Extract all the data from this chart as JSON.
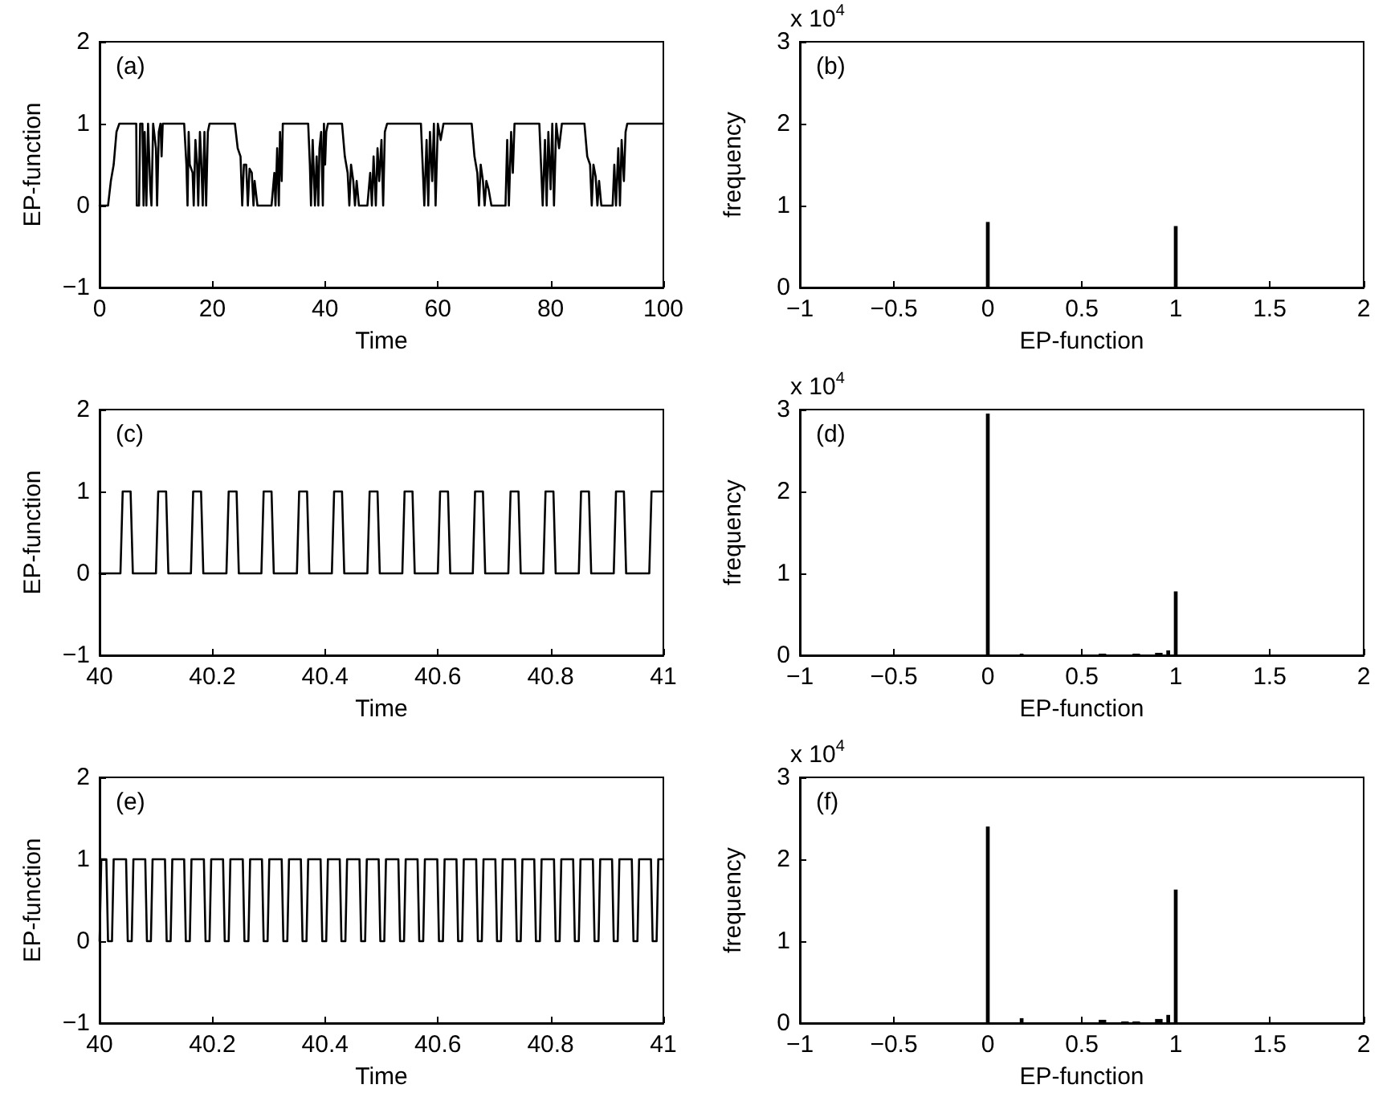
{
  "chart_data": [
    {
      "type": "line",
      "xlabel": "Time",
      "ylabel": "EP-function",
      "annotations": [
        "(a)"
      ],
      "color": "#000000",
      "xlim": [
        0,
        100
      ],
      "xticks": [
        0,
        20,
        40,
        60,
        80,
        100
      ],
      "ylim": [
        -1,
        2
      ],
      "yticks": [
        -1,
        0,
        1,
        2
      ],
      "x": [
        0,
        1.5,
        2,
        2.5,
        3,
        3.5,
        6.5,
        6.6,
        7,
        7.2,
        7.6,
        7.8,
        8,
        8.3,
        8.6,
        9,
        9.2,
        9.5,
        10,
        10.2,
        10.5,
        10.8,
        11,
        11.2,
        15,
        15.4,
        15.6,
        15.8,
        16,
        16.5,
        16.7,
        17,
        17.3,
        17.5,
        17.8,
        18,
        18.3,
        18.6,
        18.9,
        19.2,
        19.5,
        24,
        24.5,
        25,
        25.3,
        25.6,
        26,
        26.3,
        26.6,
        27,
        27.3,
        27.5,
        28,
        30.5,
        31,
        31.2,
        31.5,
        31.8,
        32,
        32.3,
        32.5,
        37,
        37.3,
        37.5,
        37.8,
        38.2,
        38.5,
        38.8,
        39,
        39.3,
        39.6,
        39.8,
        40,
        40.2,
        40.5,
        43,
        43.5,
        44,
        44.3,
        44.6,
        45,
        45.3,
        45.6,
        46,
        47.5,
        48,
        48.3,
        48.6,
        49,
        49.3,
        49.6,
        50,
        50.3,
        50.6,
        51,
        57,
        57.3,
        57.6,
        58,
        58.3,
        58.6,
        59,
        59.3,
        59.6,
        60,
        60.5,
        61,
        66,
        66.5,
        67,
        67.3,
        67.6,
        68,
        68.3,
        68.6,
        69,
        69.5,
        72,
        72.3,
        72.6,
        73,
        73.3,
        73.6,
        78,
        78.3,
        78.6,
        79,
        79.3,
        79.6,
        80,
        80.3,
        80.6,
        81,
        81.5,
        82,
        86,
        86.5,
        87,
        87.3,
        87.6,
        88,
        88.3,
        88.6,
        89,
        91,
        91.3,
        91.6,
        92,
        92.3,
        92.6,
        93,
        93.3,
        93.6,
        100
      ],
      "values": [
        0,
        0,
        0.3,
        0.5,
        0.9,
        1,
        1,
        0,
        0,
        1,
        1,
        0,
        0.9,
        0,
        1,
        0.2,
        0,
        1,
        0.7,
        0,
        0.9,
        1,
        0.6,
        1,
        1,
        0.5,
        0,
        0.9,
        0.5,
        0.4,
        0,
        0.8,
        0.5,
        0,
        0.9,
        0.6,
        0,
        0.9,
        0,
        0.9,
        1,
        1,
        0.7,
        0.6,
        0,
        0.5,
        0.5,
        0,
        0.45,
        0.4,
        0,
        0.3,
        0,
        0,
        0.4,
        0,
        0.7,
        0,
        0.9,
        0.3,
        1,
        1,
        0.5,
        0,
        0.8,
        0,
        0.6,
        0,
        0.7,
        0.9,
        0,
        1,
        0.5,
        0.9,
        1,
        1,
        0.6,
        0.4,
        0,
        0.5,
        0.3,
        0,
        0.3,
        0,
        0,
        0.4,
        0,
        0.6,
        0,
        0.7,
        0.3,
        0.8,
        0,
        0.9,
        1,
        1,
        0.5,
        0,
        0.8,
        0,
        0.9,
        0.3,
        1,
        0,
        1,
        0.8,
        1,
        1,
        0.6,
        0.4,
        0,
        0.5,
        0.3,
        0,
        0.3,
        0.2,
        0,
        0,
        0.8,
        0,
        0.9,
        0.4,
        1,
        1,
        0.5,
        0,
        0.8,
        0,
        0.9,
        0.2,
        1,
        0,
        1,
        0.7,
        1,
        1,
        0.6,
        0.5,
        0,
        0.5,
        0.35,
        0,
        0.3,
        0,
        0,
        0.5,
        0,
        0.7,
        0,
        0.8,
        0.3,
        0.9,
        1,
        1
      ]
    },
    {
      "type": "histogram",
      "xlabel": "EP-function",
      "ylabel": "frequency",
      "annotations": [
        "(b)",
        "x 10$^{4}$"
      ],
      "color": "#000000",
      "xlim": [
        -1,
        2
      ],
      "xticks": [
        -1,
        -0.5,
        0,
        0.5,
        1,
        1.5,
        2
      ],
      "ylim": [
        0,
        3
      ],
      "yticks": [
        0,
        1,
        2,
        3
      ],
      "bins": [
        -0.01,
        0.01,
        0.99,
        1.01
      ],
      "values": [
        0.8,
        0,
        0.75
      ]
    },
    {
      "type": "line",
      "xlabel": "Time",
      "ylabel": "EP-function",
      "annotations": [
        "(c)"
      ],
      "color": "#000000",
      "xlim": [
        40,
        41
      ],
      "xticks": [
        40,
        40.2,
        40.4,
        40.6,
        40.8,
        41
      ],
      "ylim": [
        -1,
        2
      ],
      "yticks": [
        -1,
        0,
        1,
        2
      ],
      "x": [
        40,
        40.037,
        40.041,
        40.055,
        40.059,
        40.1,
        40.104,
        40.118,
        40.122,
        40.162,
        40.166,
        40.18,
        40.184,
        40.225,
        40.229,
        40.243,
        40.247,
        40.287,
        40.291,
        40.305,
        40.309,
        40.35,
        40.354,
        40.368,
        40.372,
        40.412,
        40.416,
        40.43,
        40.434,
        40.475,
        40.479,
        40.493,
        40.497,
        40.537,
        40.541,
        40.555,
        40.559,
        40.6,
        40.604,
        40.618,
        40.622,
        40.662,
        40.666,
        40.68,
        40.684,
        40.725,
        40.729,
        40.743,
        40.747,
        40.787,
        40.791,
        40.805,
        40.809,
        40.85,
        40.854,
        40.868,
        40.872,
        40.912,
        40.916,
        40.93,
        40.934,
        40.975,
        40.979,
        41
      ],
      "values": [
        0,
        0,
        1,
        1,
        0,
        0,
        1,
        1,
        0,
        0,
        1,
        1,
        0,
        0,
        1,
        1,
        0,
        0,
        1,
        1,
        0,
        0,
        1,
        1,
        0,
        0,
        1,
        1,
        0,
        0,
        1,
        1,
        0,
        0,
        1,
        1,
        0,
        0,
        1,
        1,
        0,
        0,
        1,
        1,
        0,
        0,
        1,
        1,
        0,
        0,
        1,
        1,
        0,
        0,
        1,
        1,
        0,
        0,
        1,
        1,
        0,
        0,
        1,
        1
      ]
    },
    {
      "type": "histogram",
      "xlabel": "EP-function",
      "ylabel": "frequency",
      "annotations": [
        "(d)",
        "x 10$^{4}$"
      ],
      "color": "#000000",
      "xlim": [
        -1,
        2
      ],
      "xticks": [
        -1,
        -0.5,
        0,
        0.5,
        1,
        1.5,
        2
      ],
      "ylim": [
        0,
        3
      ],
      "yticks": [
        0,
        1,
        2,
        3
      ],
      "bins": [
        -0.01,
        0.01,
        0.17,
        0.19,
        0.59,
        0.63,
        0.77,
        0.81,
        0.89,
        0.93,
        0.95,
        0.97,
        0.99,
        1.01
      ],
      "values": [
        2.95,
        0,
        0.02,
        0,
        0.02,
        0,
        0.02,
        0,
        0.03,
        0,
        0.06,
        0,
        0.78
      ]
    },
    {
      "type": "line",
      "xlabel": "Time",
      "ylabel": "EP-function",
      "annotations": [
        "(e)"
      ],
      "color": "#000000",
      "xlim": [
        40,
        41
      ],
      "xticks": [
        40,
        40.2,
        40.4,
        40.6,
        40.8,
        41
      ],
      "ylim": [
        -1,
        2
      ],
      "yticks": [
        -1,
        0,
        1,
        2
      ],
      "x": [
        40,
        40.003,
        40.012,
        40.015,
        40.022,
        40.025,
        40.047,
        40.05,
        40.057,
        40.06,
        40.081,
        40.084,
        40.091,
        40.094,
        40.116,
        40.119,
        40.126,
        40.129,
        40.15,
        40.153,
        40.16,
        40.163,
        40.185,
        40.188,
        40.195,
        40.198,
        40.219,
        40.222,
        40.229,
        40.232,
        40.254,
        40.257,
        40.264,
        40.267,
        40.288,
        40.291,
        40.298,
        40.301,
        40.323,
        40.326,
        40.333,
        40.336,
        40.357,
        40.36,
        40.367,
        40.37,
        40.392,
        40.395,
        40.402,
        40.405,
        40.426,
        40.429,
        40.436,
        40.439,
        40.461,
        40.464,
        40.471,
        40.474,
        40.495,
        40.498,
        40.505,
        40.508,
        40.53,
        40.533,
        40.54,
        40.543,
        40.564,
        40.567,
        40.574,
        40.577,
        40.599,
        40.602,
        40.609,
        40.612,
        40.633,
        40.636,
        40.643,
        40.646,
        40.668,
        40.671,
        40.678,
        40.681,
        40.702,
        40.705,
        40.712,
        40.715,
        40.737,
        40.74,
        40.747,
        40.75,
        40.771,
        40.774,
        40.781,
        40.784,
        40.806,
        40.809,
        40.816,
        40.819,
        40.84,
        40.843,
        40.85,
        40.853,
        40.875,
        40.878,
        40.885,
        40.888,
        40.909,
        40.912,
        40.919,
        40.922,
        40.944,
        40.947,
        40.954,
        40.957,
        40.978,
        40.981,
        40.988,
        40.991,
        41
      ],
      "values": [
        0,
        1,
        1,
        0,
        0,
        1,
        1,
        0,
        0,
        1,
        1,
        0,
        0,
        1,
        1,
        0,
        0,
        1,
        1,
        0,
        0,
        1,
        1,
        0,
        0,
        1,
        1,
        0,
        0,
        1,
        1,
        0,
        0,
        1,
        1,
        0,
        0,
        1,
        1,
        0,
        0,
        1,
        1,
        0,
        0,
        1,
        1,
        0,
        0,
        1,
        1,
        0,
        0,
        1,
        1,
        0,
        0,
        1,
        1,
        0,
        0,
        1,
        1,
        0,
        0,
        1,
        1,
        0,
        0,
        1,
        1,
        0,
        0,
        1,
        1,
        0,
        0,
        1,
        1,
        0,
        0,
        1,
        1,
        0,
        0,
        1,
        1,
        0,
        0,
        1,
        1,
        0,
        0,
        1,
        1,
        0,
        0,
        1,
        1,
        0,
        0,
        1,
        1,
        0,
        0,
        1,
        1,
        0,
        0,
        1,
        1,
        0,
        0,
        1,
        1,
        0,
        0,
        1,
        1
      ]
    },
    {
      "type": "histogram",
      "xlabel": "EP-function",
      "ylabel": "frequency",
      "annotations": [
        "(f)",
        "x 10$^{4}$"
      ],
      "color": "#000000",
      "xlim": [
        -1,
        2
      ],
      "xticks": [
        -1,
        -0.5,
        0,
        0.5,
        1,
        1.5,
        2
      ],
      "ylim": [
        0,
        3
      ],
      "yticks": [
        0,
        1,
        2,
        3
      ],
      "bins": [
        -0.01,
        0.01,
        0.17,
        0.19,
        0.59,
        0.63,
        0.71,
        0.75,
        0.77,
        0.81,
        0.89,
        0.93,
        0.95,
        0.97,
        0.99,
        1.01
      ],
      "values": [
        2.4,
        0,
        0.06,
        0,
        0.04,
        0,
        0.02,
        0,
        0.02,
        0,
        0.05,
        0,
        0.1,
        0,
        1.63
      ]
    }
  ]
}
